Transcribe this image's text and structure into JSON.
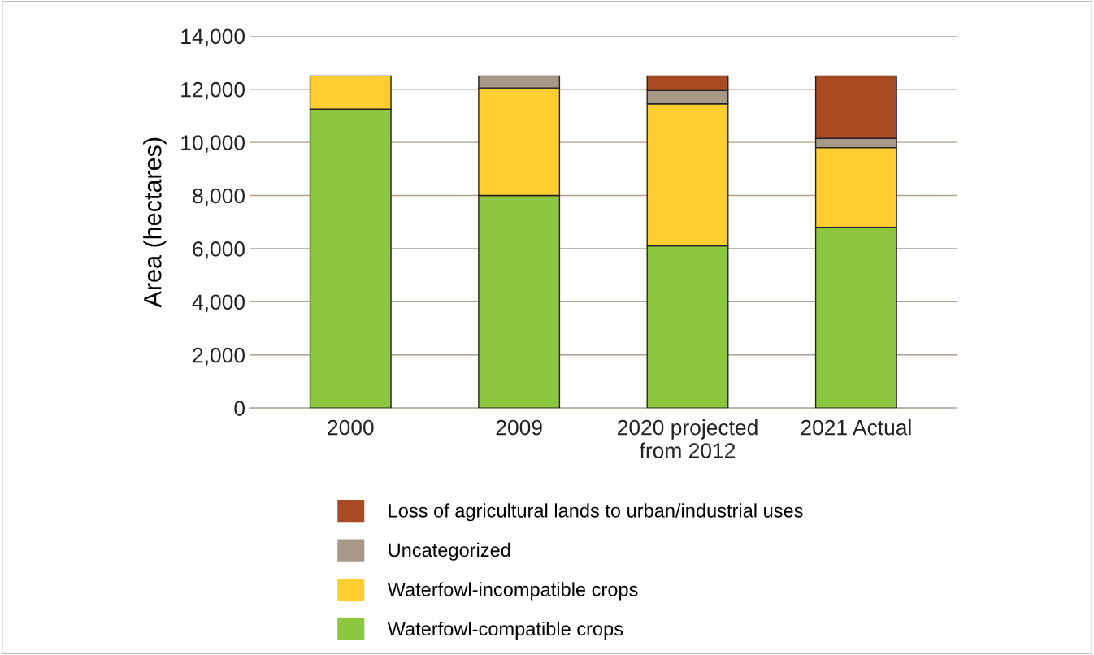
{
  "chart_data": {
    "type": "bar",
    "stacked": true,
    "ylabel": "Area (hectares)",
    "categories": [
      "2000",
      "2009",
      "2020 projected\nfrom 2012",
      "2021 Actual"
    ],
    "series": [
      {
        "name": "Waterfowl-compatible crops",
        "color": "#8dc63f",
        "values": [
          11250,
          8000,
          6100,
          6800
        ]
      },
      {
        "name": "Waterfowl-incompatible crops",
        "color": "#fdcd32",
        "values": [
          1250,
          4050,
          5350,
          3000
        ]
      },
      {
        "name": "Uncategorized",
        "color": "#a89888",
        "values": [
          null,
          450,
          500,
          350
        ]
      },
      {
        "name": "Loss of agricultural lands to urban/industrial uses",
        "color": "#a84a22",
        "values": [
          null,
          null,
          550,
          2350
        ]
      }
    ],
    "ylim": [
      0,
      14000
    ],
    "yticks": [
      {
        "value": 0,
        "label": "0"
      },
      {
        "value": 2000,
        "label": "2,000"
      },
      {
        "value": 4000,
        "label": "4,000"
      },
      {
        "value": 6000,
        "label": "6,000"
      },
      {
        "value": 8000,
        "label": "8,000"
      },
      {
        "value": 10000,
        "label": "10,000"
      },
      {
        "value": 12000,
        "label": "12,000"
      },
      {
        "value": 14000,
        "label": "14,000"
      }
    ],
    "grid": "y",
    "legend": "bottom"
  }
}
